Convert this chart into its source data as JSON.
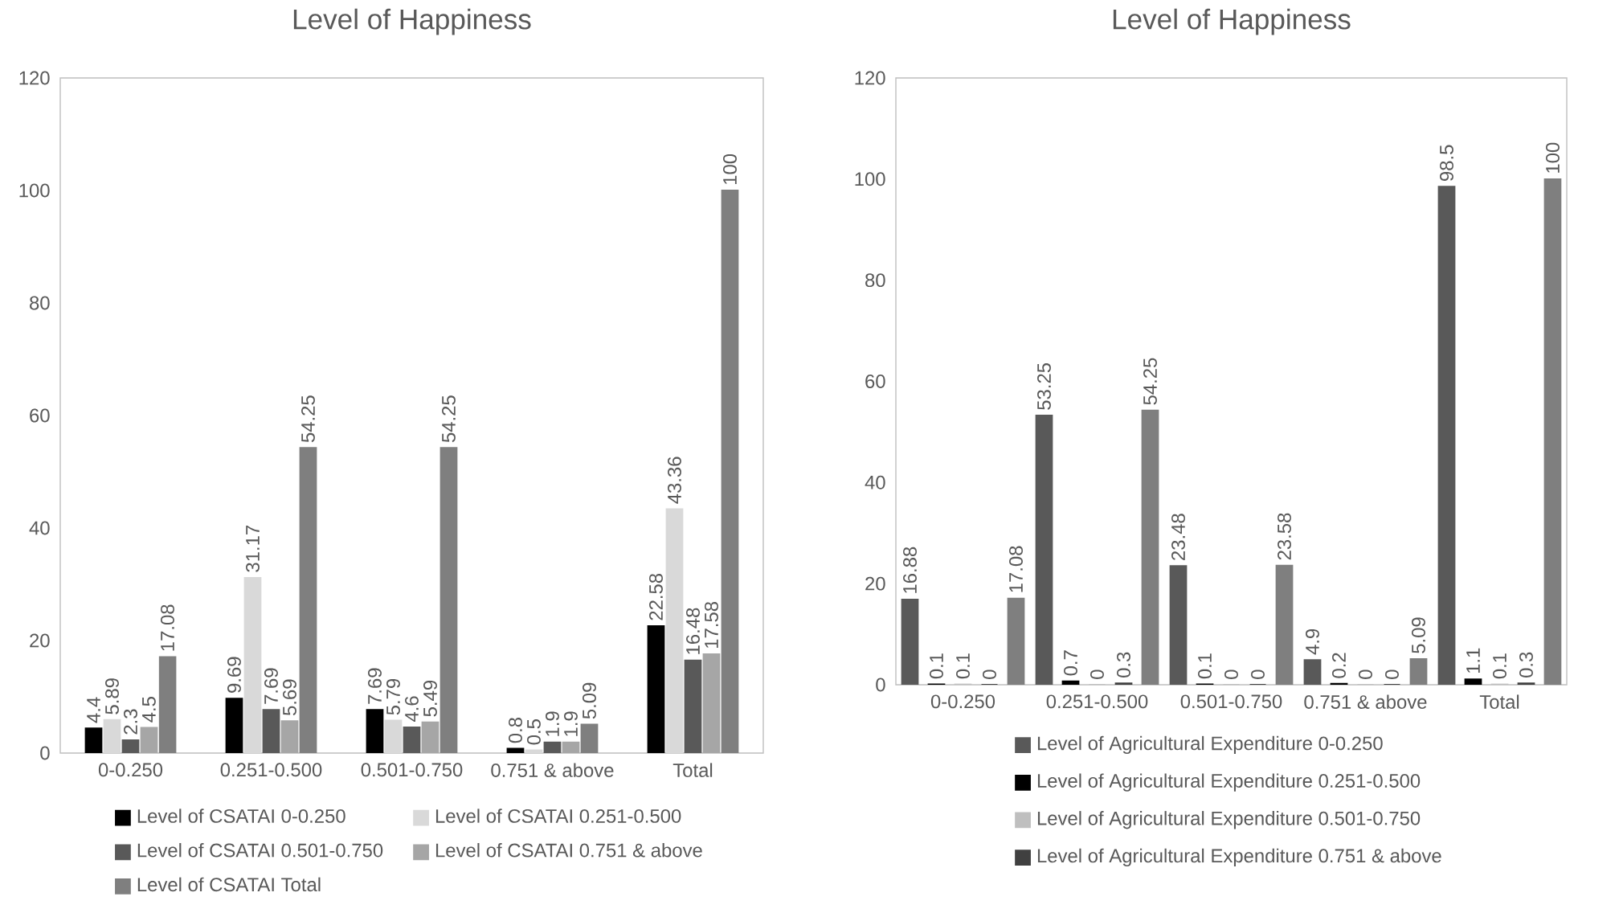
{
  "chart_data": [
    {
      "type": "bar",
      "title": "Level of Happiness",
      "categories": [
        "0-0.250",
        "0.251-0.500",
        "0.501-0.750",
        "0.751 & above",
        "Total"
      ],
      "ylim": [
        0,
        120
      ],
      "yticks": [
        0,
        20,
        40,
        60,
        80,
        100,
        120
      ],
      "data_labels": true,
      "legend": "bottom",
      "grid": false,
      "series": [
        {
          "name": "Level of CSATAI 0-0.250",
          "color": "#000000",
          "values": [
            4.4,
            9.69,
            7.69,
            0.8,
            22.58
          ]
        },
        {
          "name": "Level of CSATAI 0.251-0.500",
          "color": "#d9d9d9",
          "values": [
            5.89,
            31.17,
            5.79,
            0.5,
            43.36
          ]
        },
        {
          "name": "Level of CSATAI 0.501-0.750",
          "color": "#595959",
          "values": [
            2.3,
            7.69,
            4.6,
            1.9,
            16.48
          ]
        },
        {
          "name": "Level of CSATAI 0.751 & above",
          "color": "#a6a6a6",
          "values": [
            4.5,
            5.69,
            5.49,
            1.9,
            17.58
          ]
        },
        {
          "name": "Level of CSATAI Total",
          "color": "#7f7f7f",
          "values": [
            17.08,
            54.25,
            54.25,
            5.09,
            100
          ]
        }
      ]
    },
    {
      "type": "bar",
      "title": "Level of Happiness",
      "categories": [
        "0-0.250",
        "0.251-0.500",
        "0.501-0.750",
        "0.751 & above",
        "Total"
      ],
      "ylim": [
        0,
        120
      ],
      "yticks": [
        0,
        20,
        40,
        60,
        80,
        100,
        120
      ],
      "data_labels": true,
      "legend": "bottom",
      "grid": false,
      "series": [
        {
          "name": "Level of Agricultural Expenditure 0-0.250",
          "color": "#595959",
          "values": [
            16.88,
            53.25,
            23.48,
            4.9,
            98.5
          ]
        },
        {
          "name": "Level of Agricultural Expenditure 0.251-0.500",
          "color": "#000000",
          "values": [
            0.1,
            0.7,
            0.1,
            0.2,
            1.1
          ]
        },
        {
          "name": "Level of Agricultural Expenditure 0.501-0.750",
          "color": "#bfbfbf",
          "values": [
            0.1,
            0,
            0,
            0,
            0.1
          ]
        },
        {
          "name": "Level of Agricultural Expenditure 0.751 & above",
          "color": "#404040",
          "values": [
            0,
            0.3,
            0,
            0,
            0.3
          ]
        },
        {
          "color": "#7f7f7f",
          "values": [
            17.08,
            54.25,
            23.58,
            5.09,
            100
          ]
        }
      ]
    }
  ]
}
